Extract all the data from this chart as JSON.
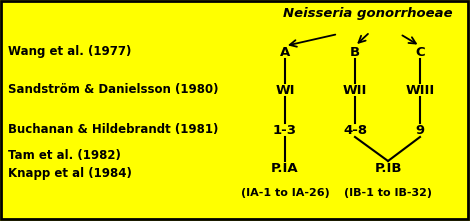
{
  "bg_color": "#FFFF00",
  "border_color": "#000000",
  "title_text": "Neisseria gonorrhoeae",
  "label_wang": "Wang et al. (1977)",
  "label_sand": "Sandström & Danielsson (1980)",
  "label_buch": "Buchanan & Hildebrandt (1981)",
  "label_tam": "Tam et al. (1982)",
  "label_knapp": "Knapp et al (1984)",
  "label_ia": "(IA-1 to IA-26)",
  "label_ib": "(IB-1 to IB-32)",
  "node_A": "A",
  "node_B": "B",
  "node_C": "C",
  "node_WI": "WI",
  "node_WII": "WII",
  "node_WIII": "WIII",
  "node_13": "1-3",
  "node_48": "4-8",
  "node_9": "9",
  "node_PIA": "P.IA",
  "node_PIB": "P.IB",
  "figw": 4.7,
  "figh": 2.21,
  "dpi": 100
}
